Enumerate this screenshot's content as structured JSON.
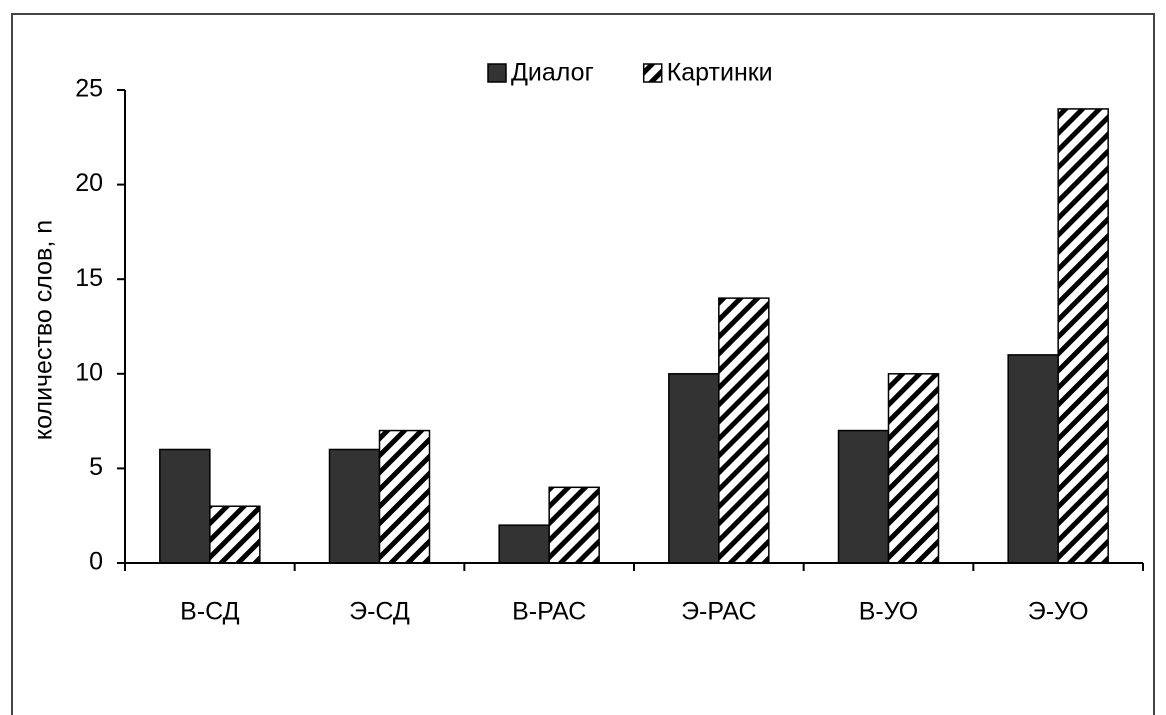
{
  "chart_data": {
    "type": "bar",
    "categories": [
      "В-СД",
      "Э-СД",
      "В-РАС",
      "Э-РАС",
      "В-УО",
      "Э-УО"
    ],
    "series": [
      {
        "name": "Диалог",
        "color": "#333333",
        "values": [
          6,
          6,
          2,
          10,
          7,
          11
        ]
      },
      {
        "name": "Картинки",
        "color": "#000000",
        "hatch": true,
        "values": [
          3,
          7,
          4,
          14,
          10,
          24
        ]
      }
    ],
    "y_label": "количество слов, n",
    "ylim": [
      0,
      25
    ],
    "yticks": [
      0,
      5,
      10,
      15,
      20,
      25
    ],
    "legend": "top"
  }
}
